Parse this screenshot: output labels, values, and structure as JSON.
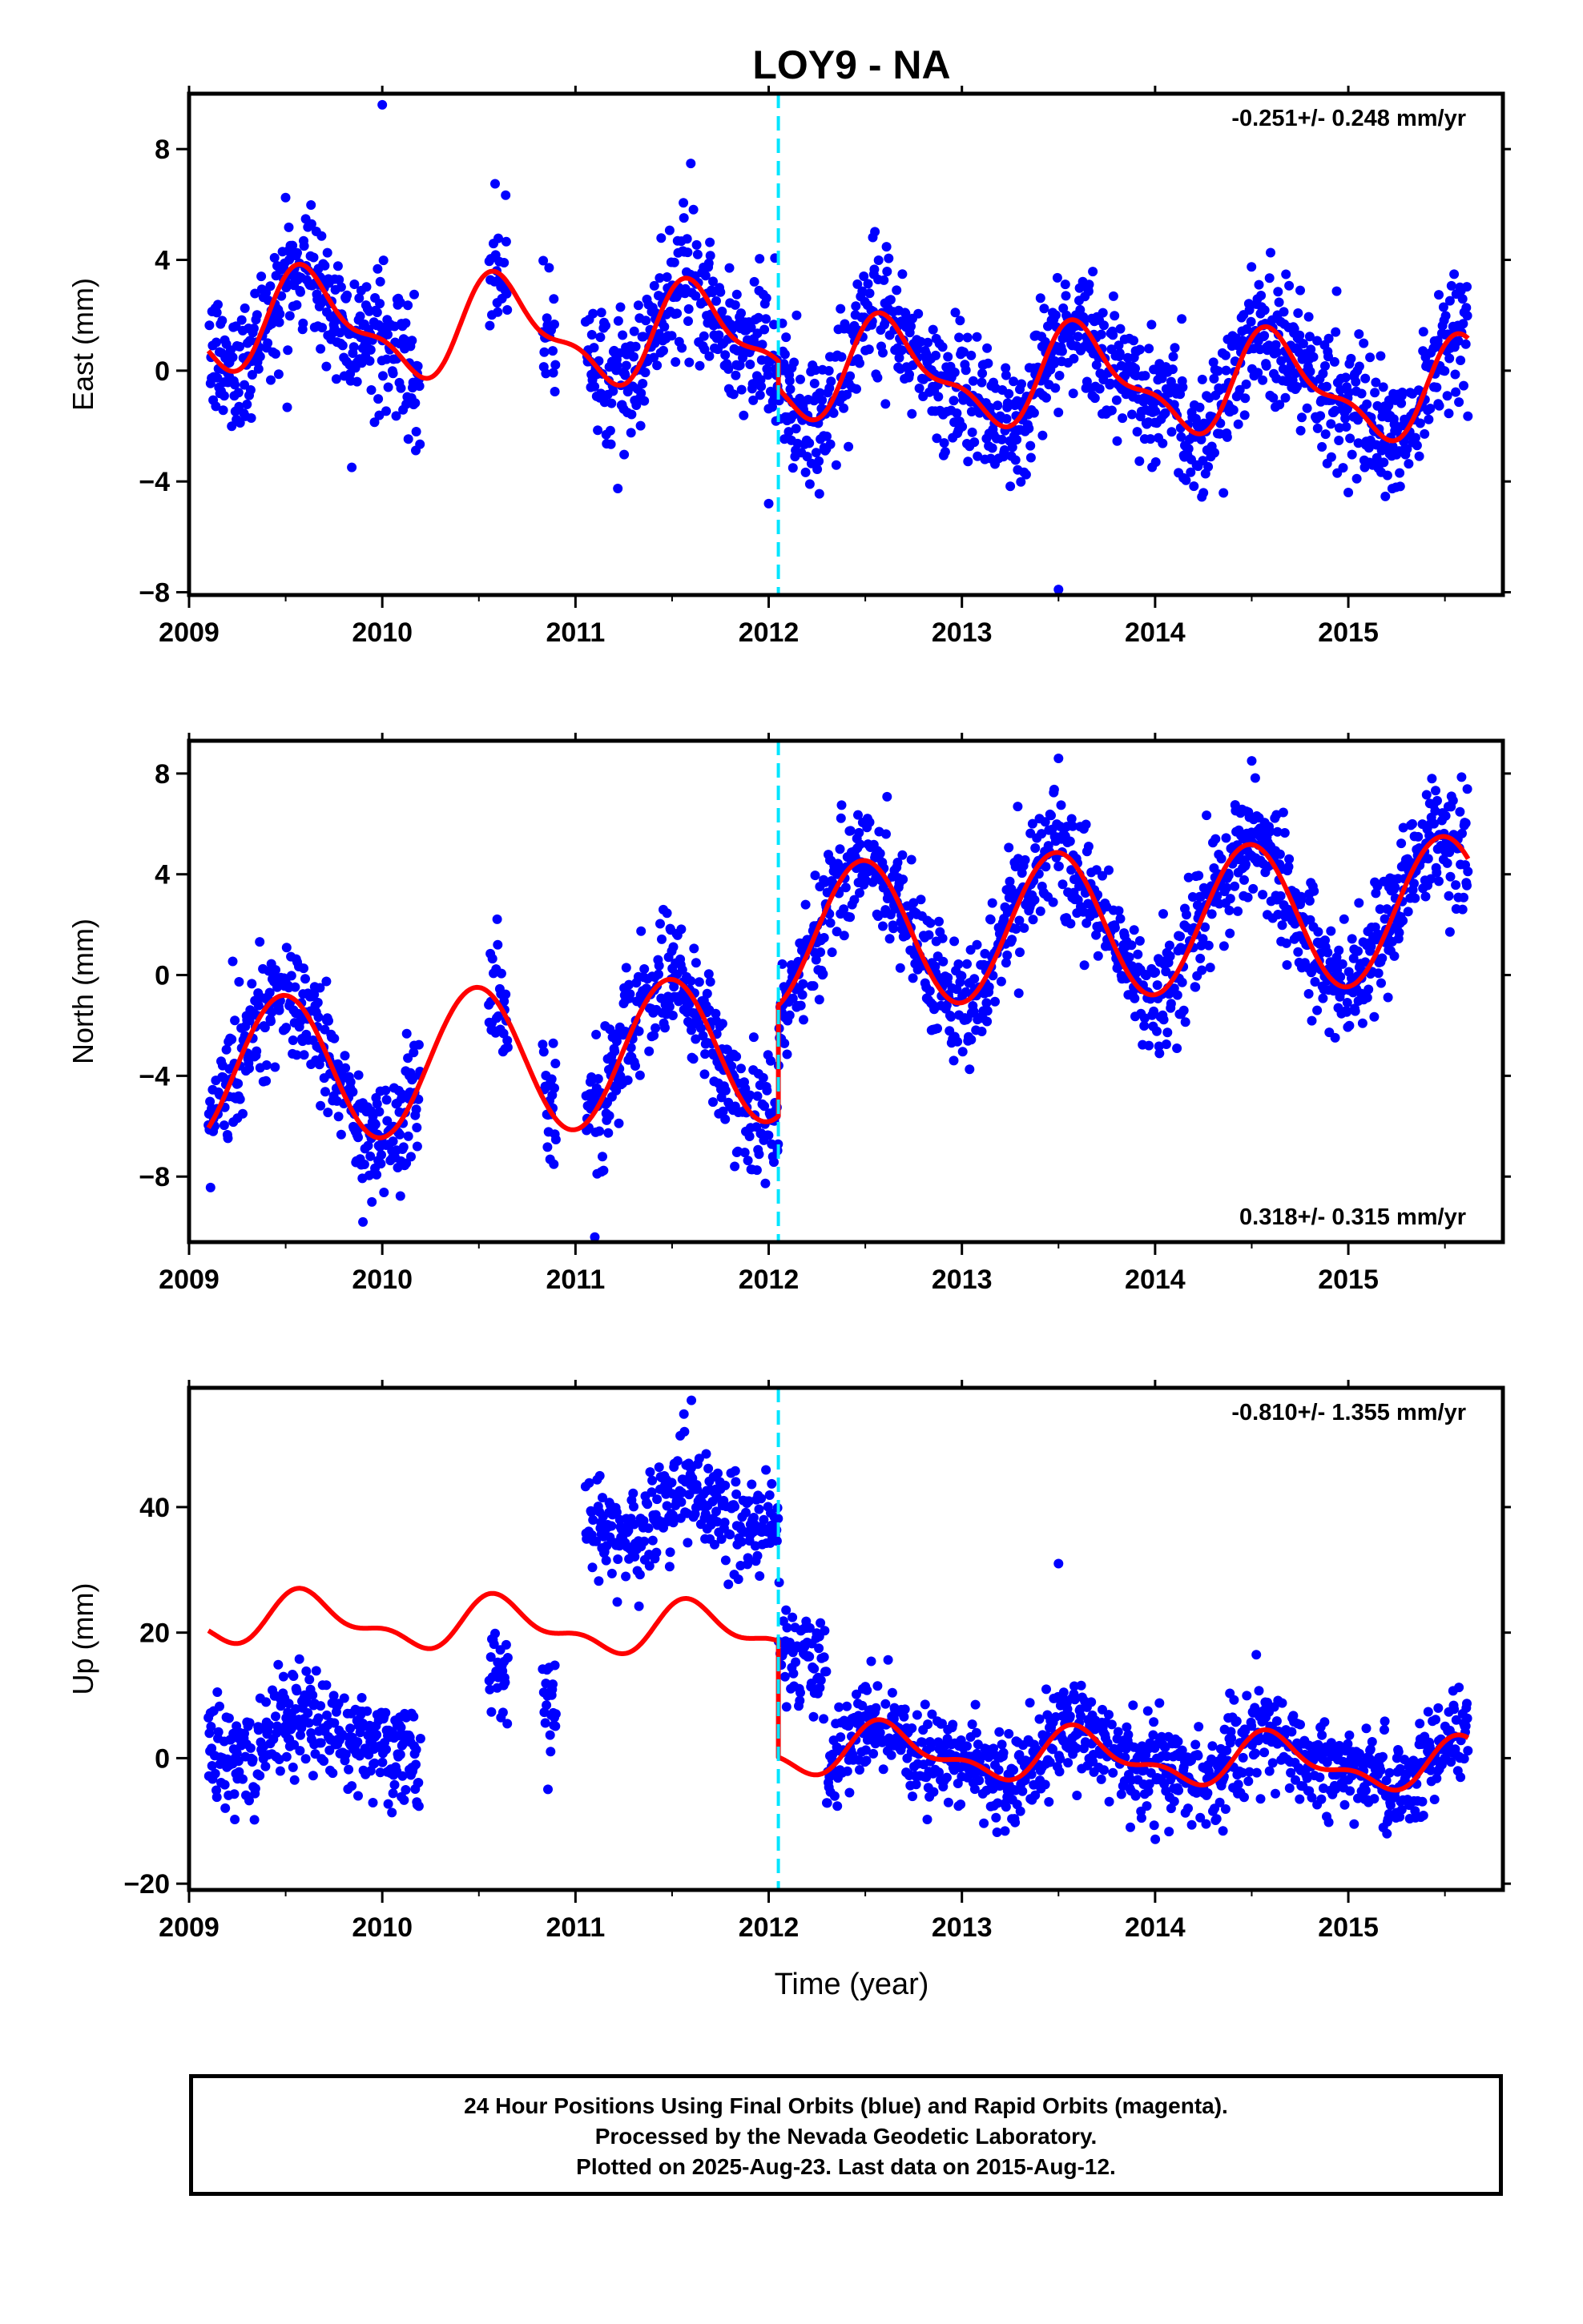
{
  "title": "LOY9 - NA",
  "x_axis_label": "Time (year)",
  "footer": {
    "line1": "24 Hour Positions Using Final Orbits (blue) and Rapid Orbits (magenta).",
    "line2": "Processed by the Nevada Geodetic Laboratory.",
    "line3": "Plotted on 2025-Aug-23. Last data on 2015-Aug-12."
  },
  "colors": {
    "final_orbit_points": "#0000ff",
    "model_fit": "#ff0000",
    "equipment_change": "#00e5ff",
    "frame": "#000000"
  },
  "chart_data": [
    {
      "type": "scatter",
      "component": "East",
      "ylabel": "East (mm)",
      "rate_text": "-0.251+/- 0.248 mm/yr",
      "xlim": [
        2009,
        2015.8
      ],
      "ylim": [
        -8.1,
        10
      ],
      "xticks": [
        2009,
        2010,
        2011,
        2012,
        2013,
        2014,
        2015
      ],
      "yticks": [
        -8,
        -4,
        0,
        4,
        8
      ],
      "grid": false,
      "offset_epoch": 2012.05,
      "data_gaps": [
        [
          2010.2,
          2010.55
        ],
        [
          2010.65,
          2010.83
        ],
        [
          2010.9,
          2011.05
        ]
      ],
      "model": {
        "rate": -0.251,
        "annual_cos": -1.1,
        "annual_sin": -1.2,
        "semiannual_cos": 0.6,
        "semiannual_sin": 0.3,
        "segments": [
          {
            "from": 2009.1,
            "to": 2012.05,
            "offset": 1.1
          },
          {
            "from": 2012.05,
            "to": 2015.62,
            "offset": 0.1
          }
        ],
        "scatter_sd": 1.2
      },
      "outliers": [
        [
          2010.0,
          9.6
        ],
        [
          2013.5,
          -7.9
        ],
        [
          2012.0,
          -4.8
        ],
        [
          2015.0,
          -4.4
        ]
      ]
    },
    {
      "type": "scatter",
      "component": "North",
      "ylabel": "North (mm)",
      "rate_text": "0.318+/- 0.315 mm/yr",
      "xlim": [
        2009,
        2015.8
      ],
      "ylim": [
        -10.6,
        9.3
      ],
      "xticks": [
        2009,
        2010,
        2011,
        2012,
        2013,
        2014,
        2015
      ],
      "yticks": [
        -8,
        -4,
        0,
        4,
        8
      ],
      "grid": false,
      "offset_epoch": 2012.05,
      "data_gaps": [
        [
          2010.2,
          2010.55
        ],
        [
          2010.65,
          2010.83
        ],
        [
          2010.9,
          2011.05
        ]
      ],
      "model": {
        "rate": 0.318,
        "annual_cos": -2.9,
        "annual_sin": 0.2,
        "semiannual_cos": 0.0,
        "semiannual_sin": 0.0,
        "segments": [
          {
            "from": 2009.1,
            "to": 2012.05,
            "offset": -2.9
          },
          {
            "from": 2012.05,
            "to": 2015.62,
            "offset": 1.5
          }
        ],
        "scatter_sd": 1.2
      },
      "outliers": [
        [
          2009.9,
          -9.8
        ],
        [
          2011.1,
          -10.4
        ],
        [
          2013.5,
          8.6
        ],
        [
          2014.5,
          8.5
        ]
      ]
    },
    {
      "type": "scatter",
      "component": "Up",
      "ylabel": "Up (mm)",
      "rate_text": "-0.810+/- 1.355 mm/yr",
      "xlim": [
        2009,
        2015.8
      ],
      "ylim": [
        -21,
        59
      ],
      "xticks": [
        2009,
        2010,
        2011,
        2012,
        2013,
        2014,
        2015
      ],
      "yticks": [
        -20,
        0,
        20,
        40
      ],
      "grid": false,
      "offset_epoch": 2012.05,
      "data_gaps": [
        [
          2010.2,
          2010.55
        ],
        [
          2010.65,
          2010.83
        ],
        [
          2010.9,
          2011.05
        ]
      ],
      "model": {
        "rate": -0.81,
        "annual_cos": -2.5,
        "annual_sin": -2.5,
        "semiannual_cos": 1.5,
        "semiannual_sin": 1.0,
        "segments": [
          {
            "from": 2009.1,
            "to": 2012.05,
            "offset": 20.0
          },
          {
            "from": 2012.05,
            "to": 2015.62,
            "offset": 1.5
          }
        ],
        "scatter_sd": 3.8
      },
      "point_offsets": [
        {
          "from": 2009.1,
          "to": 2010.25,
          "shift": -19
        },
        {
          "from": 2010.5,
          "to": 2011.0,
          "shift": -12
        },
        {
          "from": 2011.05,
          "to": 2012.3,
          "shift": 18
        }
      ],
      "outliers": [
        [
          2013.5,
          31
        ],
        [
          2011.6,
          57
        ]
      ]
    }
  ]
}
